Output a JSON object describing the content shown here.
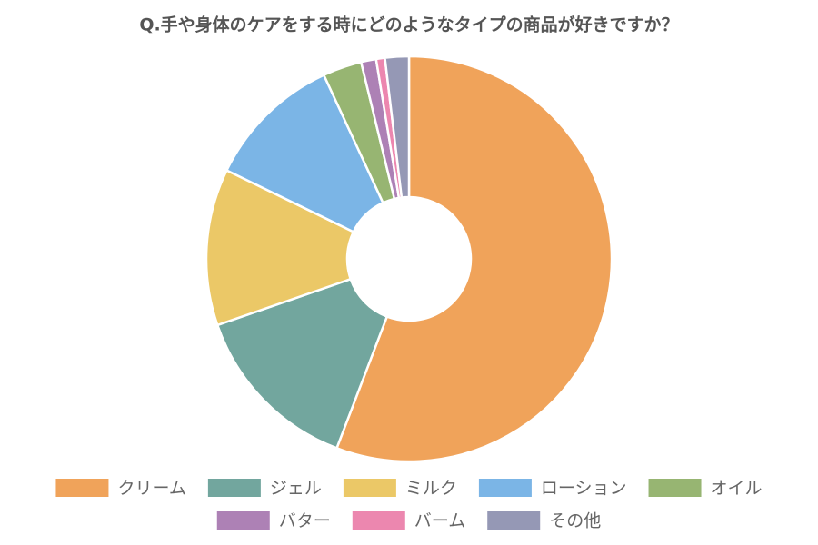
{
  "chart_data": {
    "type": "donut",
    "title": "Q.手や身体のケアをする時にどのようなタイプの商品が好きですか？",
    "categories": [
      "クリーム",
      "ジェル",
      "ミルク",
      "ローション",
      "オイル",
      "バター",
      "バーム",
      "その他"
    ],
    "values": [
      55.8,
      13.9,
      12.5,
      10.9,
      3.1,
      1.2,
      0.7,
      1.9
    ],
    "colors": [
      "#f0a35a",
      "#72a69e",
      "#ebc867",
      "#7bb5e6",
      "#97b572",
      "#ad81b5",
      "#ec87af",
      "#9598b5"
    ],
    "legend": "bottom"
  }
}
